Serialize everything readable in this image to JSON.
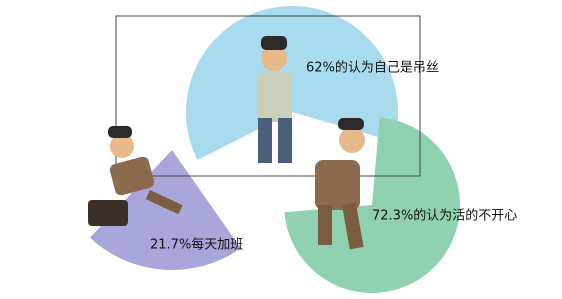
{
  "chart_data": {
    "type": "pie",
    "values": [
      62,
      72.3,
      21.7
    ],
    "value_labels": [
      "62%的认为自己是吊丝",
      "72.3%的认为活的不开心",
      "21.7%每天加班"
    ],
    "colors": [
      "#a9dbef",
      "#8fd1b0",
      "#a8a6da"
    ]
  }
}
